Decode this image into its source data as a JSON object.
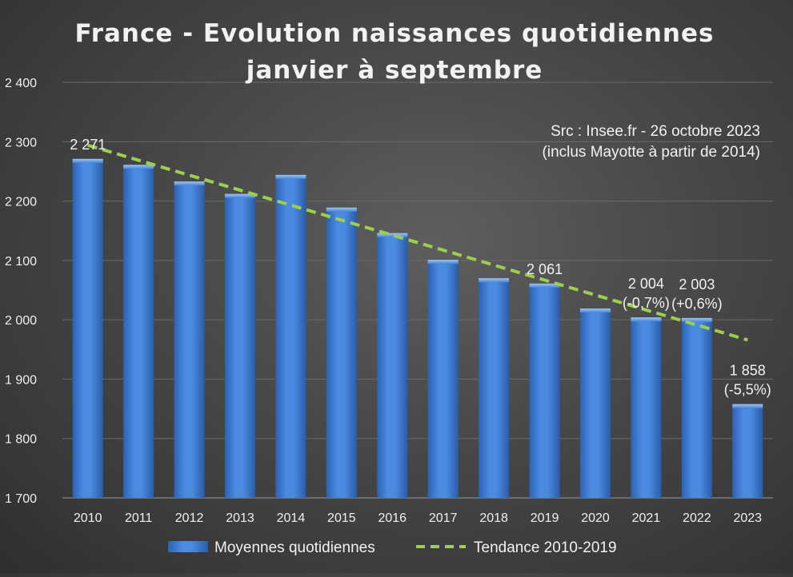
{
  "chart_data": {
    "type": "bar",
    "title": "France - Evolution naissances quotidiennes",
    "subtitle": "janvier à septembre",
    "source_lines": [
      "Src : Insee.fr - 26 octobre 2023",
      "(inclus Mayotte à partir de 2014)"
    ],
    "categories": [
      "2010",
      "2011",
      "2012",
      "2013",
      "2014",
      "2015",
      "2016",
      "2017",
      "2018",
      "2019",
      "2020",
      "2021",
      "2022",
      "2023"
    ],
    "series": [
      {
        "name": "Moyennes quotidiennes",
        "type": "bar",
        "color": "#3d7bd0",
        "values": [
          2271,
          2261,
          2233,
          2212,
          2244,
          2189,
          2146,
          2101,
          2070,
          2061,
          2019,
          2004,
          2003,
          1858
        ]
      },
      {
        "name": "Tendance 2010-2019",
        "type": "line",
        "style": "dashed",
        "color": "#9ccf4c",
        "x": [
          "2010",
          "2023"
        ],
        "values": [
          2294,
          1966
        ]
      }
    ],
    "data_labels": [
      {
        "category": "2010",
        "lines": [
          "2 271"
        ]
      },
      {
        "category": "2019",
        "lines": [
          "2 061"
        ]
      },
      {
        "category": "2021",
        "lines": [
          "2 004",
          "(-0,7%)"
        ]
      },
      {
        "category": "2022",
        "lines": [
          "2 003",
          "(+0,6%)"
        ]
      },
      {
        "category": "2023",
        "lines": [
          "1 858",
          "(-5,5%)"
        ]
      }
    ],
    "yticks": [
      "1 700",
      "1 800",
      "1 900",
      "2 000",
      "2 100",
      "2 200",
      "2 300",
      "2 400"
    ],
    "ylim": [
      1700,
      2400
    ],
    "grid": true,
    "legend_position": "bottom"
  }
}
